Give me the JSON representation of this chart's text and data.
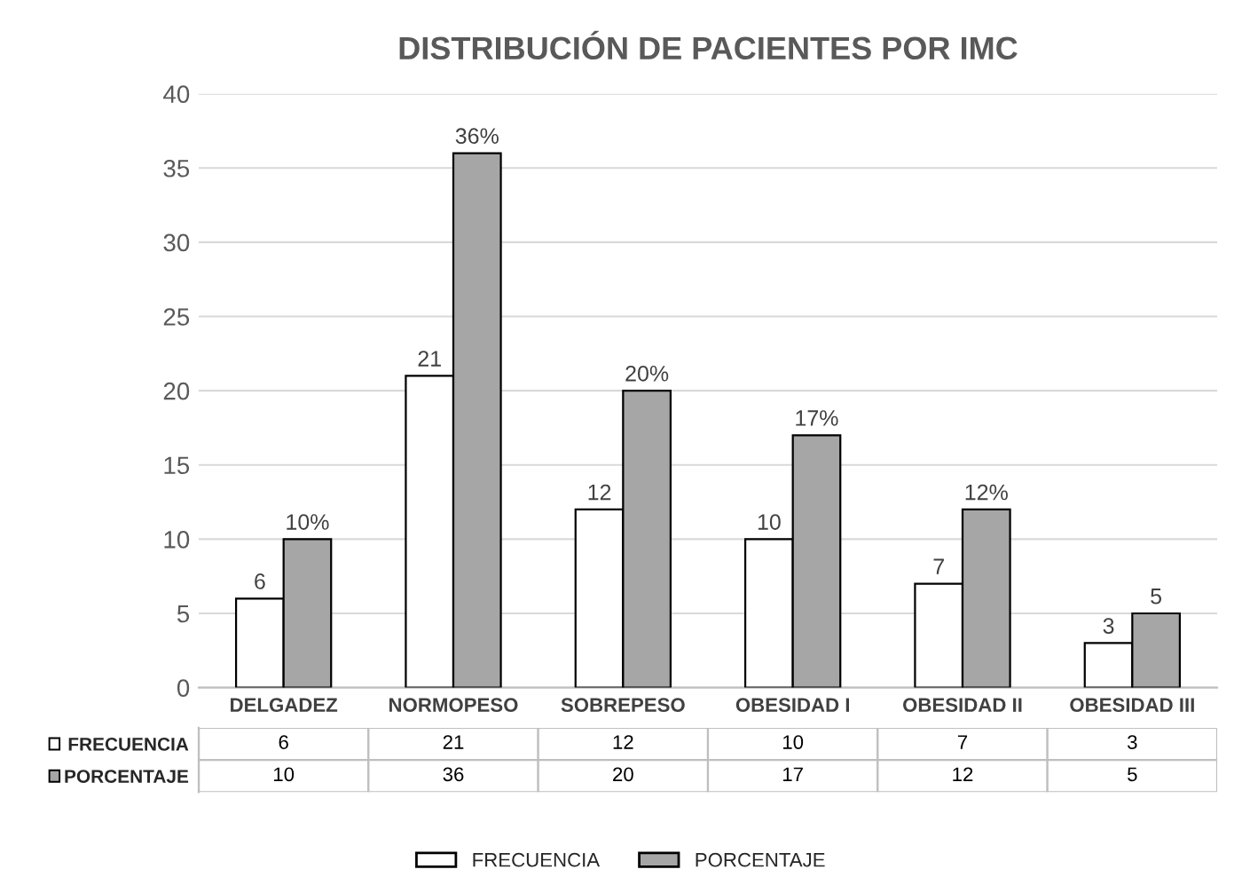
{
  "chart_data": [
    {
      "type": "bar",
      "title": "DISTRIBUCIÓN DE PACIENTES POR IMC",
      "categories": [
        "DELGADEZ",
        "NORMOPESO",
        "SOBREPESO",
        "OBESIDAD I",
        "OBESIDAD II",
        "OBESIDAD III"
      ],
      "series": [
        {
          "name": "FRECUENCIA",
          "color": "#ffffff",
          "values": [
            6,
            21,
            12,
            10,
            7,
            3
          ],
          "value_labels": [
            "6",
            "21",
            "12",
            "10",
            "7",
            "3"
          ]
        },
        {
          "name": "PORCENTAJE",
          "color": "#a6a6a6",
          "values": [
            10,
            36,
            20,
            17,
            12,
            5
          ],
          "value_labels": [
            "10%",
            "36%",
            "20%",
            "17%",
            "12%",
            "5"
          ]
        }
      ],
      "ylim": [
        0,
        40
      ],
      "yticks": [
        0,
        5,
        10,
        15,
        20,
        25,
        30,
        35,
        40
      ],
      "grid": "y",
      "legend": "bottom"
    },
    {
      "type": "other",
      "y_categories": [
        "FRECUENCIA",
        "PORCENTAJE"
      ],
      "cell_labels": [
        [
          "6",
          "21",
          "12",
          "10",
          "7",
          "3"
        ],
        [
          "10",
          "36",
          "20",
          "17",
          "12",
          "5"
        ]
      ]
    }
  ]
}
